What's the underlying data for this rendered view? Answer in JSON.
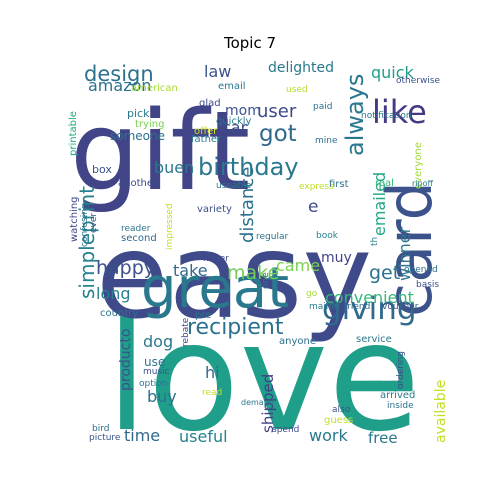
{
  "title": "Topic 7",
  "words": [
    {
      "text": "love",
      "color": "#1f9e89"
    },
    {
      "text": "easy",
      "color": "#3e4a89"
    },
    {
      "text": "gift",
      "color": "#414487"
    },
    {
      "text": "great",
      "color": "#2a788e"
    },
    {
      "text": "card",
      "color": "#3b528b"
    },
    {
      "text": "giving",
      "color": "#31688e"
    },
    {
      "text": "like",
      "color": "#443983"
    },
    {
      "text": "birthday",
      "color": "#2a788e"
    },
    {
      "text": "simpleprint",
      "color": "#26828e"
    },
    {
      "text": "always",
      "color": "#2a788e"
    },
    {
      "text": "recipient",
      "color": "#2c718e"
    },
    {
      "text": "convenient",
      "color": "#35b779"
    },
    {
      "text": "design",
      "color": "#2c718e"
    },
    {
      "text": "happy",
      "color": "#3b528b"
    },
    {
      "text": "make",
      "color": "#6ece58"
    },
    {
      "text": "got",
      "color": "#31688e"
    },
    {
      "text": "distance",
      "color": "#2c718e"
    },
    {
      "text": "user",
      "color": "#3e4989"
    },
    {
      "text": "emailed",
      "color": "#22a884"
    },
    {
      "text": "quick",
      "color": "#1f9e89"
    },
    {
      "text": "winner",
      "color": "#2a788e"
    },
    {
      "text": "get",
      "color": "#2c718e"
    },
    {
      "text": "take",
      "color": "#31688e"
    },
    {
      "text": "came",
      "color": "#7ad151"
    },
    {
      "text": "amazon",
      "color": "#2c718e"
    },
    {
      "text": "law",
      "color": "#3b528b"
    },
    {
      "text": "delighted",
      "color": "#2a788e"
    },
    {
      "text": "long",
      "color": "#26828e"
    },
    {
      "text": "muy",
      "color": "#414487"
    },
    {
      "text": "buen",
      "color": "#2a788e"
    },
    {
      "text": "car",
      "color": "#3e4a89"
    },
    {
      "text": "mom",
      "color": "#3b528b"
    },
    {
      "text": "someone",
      "color": "#2c718e"
    },
    {
      "text": "dog",
      "color": "#2a788e"
    },
    {
      "text": "producto",
      "color": "#3b528b"
    },
    {
      "text": "hi",
      "color": "#31688e"
    },
    {
      "text": "buy",
      "color": "#2c718e"
    },
    {
      "text": "shipped",
      "color": "#424086"
    },
    {
      "text": "available",
      "color": "#c2df23"
    },
    {
      "text": "time",
      "color": "#31688e"
    },
    {
      "text": "useful",
      "color": "#26828e"
    },
    {
      "text": "work",
      "color": "#2a788e"
    },
    {
      "text": "free",
      "color": "#2a788e"
    },
    {
      "text": "e",
      "color": "#3e4a89"
    },
    {
      "text": "box",
      "color": "#3b528b"
    },
    {
      "text": "pick",
      "color": "#2a788e"
    },
    {
      "text": "trying",
      "color": "#7ad151"
    },
    {
      "text": "american",
      "color": "#a5db36"
    },
    {
      "text": "email",
      "color": "#2a788e"
    },
    {
      "text": "glad",
      "color": "#3e4a89"
    },
    {
      "text": "quickly",
      "color": "#2a788e"
    },
    {
      "text": "used",
      "color": "#b5de2b"
    },
    {
      "text": "paid",
      "color": "#2c718e"
    },
    {
      "text": "otherwise",
      "color": "#3b528b"
    },
    {
      "text": "notification",
      "color": "#2a788e"
    },
    {
      "text": "mine",
      "color": "#2c718e"
    },
    {
      "text": "everyone",
      "color": "#a5db36"
    },
    {
      "text": "father",
      "color": "#2a788e"
    },
    {
      "text": "offer",
      "color": "#d2e21b"
    },
    {
      "text": "printable",
      "color": "#22a884"
    },
    {
      "text": "another",
      "color": "#3e4a89"
    },
    {
      "text": "useable",
      "color": "#2a788e"
    },
    {
      "text": "express",
      "color": "#bddf26"
    },
    {
      "text": "first",
      "color": "#2c718e"
    },
    {
      "text": "real",
      "color": "#35b779"
    },
    {
      "text": "ripoff",
      "color": "#2a788e"
    },
    {
      "text": "variety",
      "color": "#3b528b"
    },
    {
      "text": "regular",
      "color": "#2c718e"
    },
    {
      "text": "book",
      "color": "#26828e"
    },
    {
      "text": "th",
      "color": "#2a788e"
    },
    {
      "text": "watching",
      "color": "#3e4a89"
    },
    {
      "text": "confusing",
      "color": "#2c718e"
    },
    {
      "text": "ever",
      "color": "#3b528b"
    },
    {
      "text": "reader",
      "color": "#2a788e"
    },
    {
      "text": "second",
      "color": "#31688e"
    },
    {
      "text": "impressed",
      "color": "#c2df23"
    },
    {
      "text": "never",
      "color": "#3e4a89"
    },
    {
      "text": "one",
      "color": "#2c718e"
    },
    {
      "text": "opened",
      "color": "#2c718e"
    },
    {
      "text": "basis",
      "color": "#3b528b"
    },
    {
      "text": "country",
      "color": "#2c718e"
    },
    {
      "text": "go",
      "color": "#a5db36"
    },
    {
      "text": "mailed",
      "color": "#2a788e"
    },
    {
      "text": "friend",
      "color": "#31688e"
    },
    {
      "text": "voucher",
      "color": "#3b528b"
    },
    {
      "text": "pre",
      "color": "#2c718e"
    },
    {
      "text": "rebate",
      "color": "#3e4a89"
    },
    {
      "text": "anyone",
      "color": "#2c718e"
    },
    {
      "text": "service",
      "color": "#2a788e"
    },
    {
      "text": "use",
      "color": "#2c718e"
    },
    {
      "text": "music",
      "color": "#3b528b"
    },
    {
      "text": "option",
      "color": "#2c718e"
    },
    {
      "text": "read",
      "color": "#c2df23"
    },
    {
      "text": "ordering",
      "color": "#3e4a89"
    },
    {
      "text": "arrived",
      "color": "#2a788e"
    },
    {
      "text": "inside",
      "color": "#2c718e"
    },
    {
      "text": "also",
      "color": "#3b528b"
    },
    {
      "text": "guess",
      "color": "#c2df23"
    },
    {
      "text": "bird",
      "color": "#2c718e"
    },
    {
      "text": "picture",
      "color": "#3b528b"
    },
    {
      "text": "spend",
      "color": "#3e4a89"
    },
    {
      "text": "demand",
      "color": "#2a788e"
    }
  ]
}
